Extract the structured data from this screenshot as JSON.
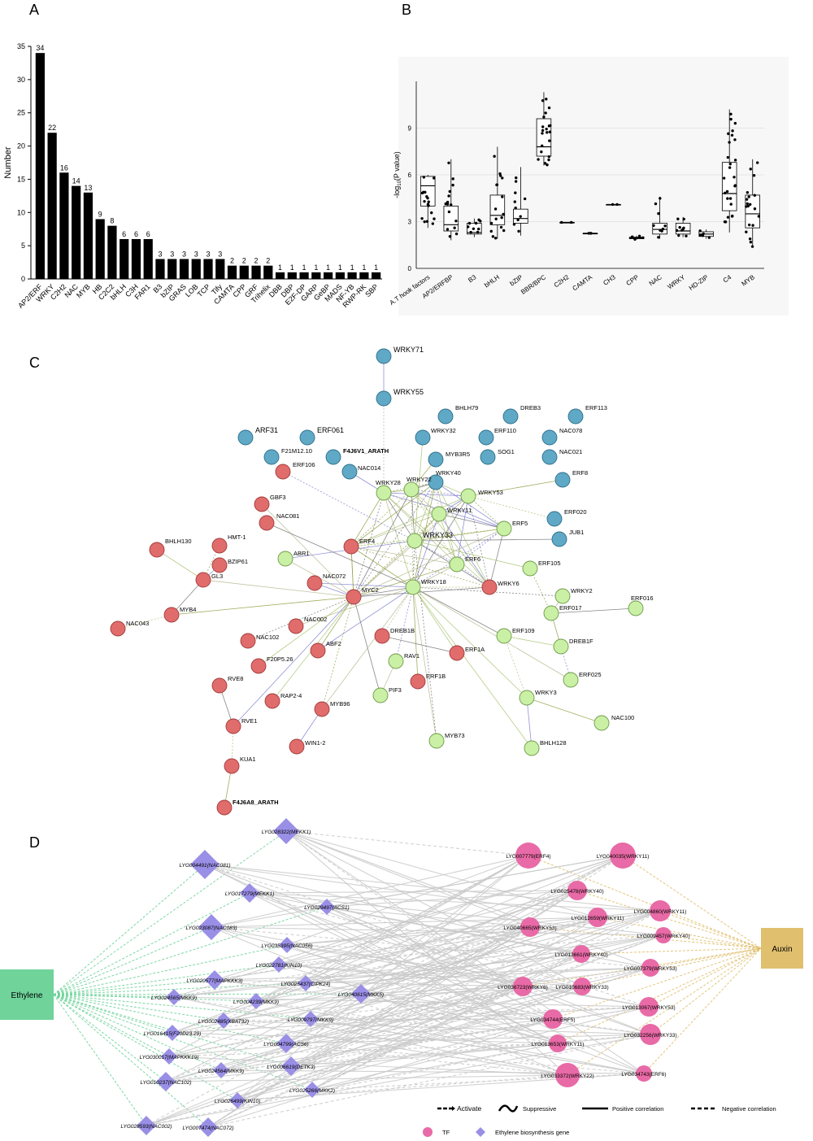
{
  "panel_labels": {
    "a": "A",
    "b": "B",
    "c": "C",
    "d": "D"
  },
  "chart_data": [
    {
      "type": "bar",
      "title": "",
      "ylabel": "Number",
      "xlabel": "",
      "ylim": [
        0,
        35
      ],
      "yticks": [
        0,
        5,
        10,
        15,
        20,
        25,
        30,
        35
      ],
      "categories": [
        "AP2/ERF",
        "WRKY",
        "C2H2",
        "NAC",
        "MYB",
        "HB",
        "C2C2",
        "bHLH",
        "C3H",
        "FAR1",
        "B3",
        "bZIP",
        "GRAS",
        "LOB",
        "TCP",
        "Tify",
        "CAMTA",
        "CPP",
        "GRF",
        "Trihelix",
        "DBB",
        "DBP",
        "E2F-DP",
        "GARP",
        "GeBP",
        "MADS",
        "NF-YB",
        "RWP-RK",
        "SBP"
      ],
      "values": [
        34,
        22,
        16,
        14,
        13,
        9,
        8,
        6,
        6,
        6,
        3,
        3,
        3,
        3,
        3,
        3,
        2,
        2,
        2,
        2,
        1,
        1,
        1,
        1,
        1,
        1,
        1,
        1,
        1
      ]
    },
    {
      "type": "box",
      "title": "",
      "ylabel": "-log10(P value)",
      "xlabel": "",
      "ylim": [
        0,
        12
      ],
      "yticks": [
        0,
        3,
        6,
        9
      ],
      "categories": [
        "A.T hook factors",
        "AP2/ERFBP",
        "B3",
        "bHLH",
        "bZIP",
        "BBR/BPC",
        "C2H2",
        "CAMTA",
        "CH3",
        "CPP",
        "NAC",
        "WRKY",
        "HD-ZIP",
        "C4",
        "MYB"
      ],
      "boxes": [
        {
          "q1": 4.0,
          "median": 5.3,
          "q3": 5.9,
          "lo": 2.6,
          "hi": 6.0
        },
        {
          "q1": 2.4,
          "median": 2.8,
          "q3": 4.0,
          "lo": 1.8,
          "hi": 7.0
        },
        {
          "q1": 2.2,
          "median": 2.3,
          "q3": 2.9,
          "lo": 2.0,
          "hi": 3.2
        },
        {
          "q1": 2.8,
          "median": 3.4,
          "q3": 4.7,
          "lo": 1.9,
          "hi": 7.8
        },
        {
          "q1": 2.9,
          "median": 3.2,
          "q3": 3.8,
          "lo": 2.1,
          "hi": 6.5
        },
        {
          "q1": 7.2,
          "median": 7.8,
          "q3": 9.6,
          "lo": 6.6,
          "hi": 11.3
        },
        {
          "q1": 2.95,
          "median": 2.95,
          "q3": 2.95,
          "lo": 2.95,
          "hi": 2.95
        },
        {
          "q1": 2.25,
          "median": 2.25,
          "q3": 2.25,
          "lo": 2.25,
          "hi": 2.25
        },
        {
          "q1": 4.1,
          "median": 4.1,
          "q3": 4.1,
          "lo": 4.1,
          "hi": 4.1
        },
        {
          "q1": 1.9,
          "median": 1.95,
          "q3": 2.0,
          "lo": 1.85,
          "hi": 2.1
        },
        {
          "q1": 2.2,
          "median": 2.5,
          "q3": 2.9,
          "lo": 1.9,
          "hi": 4.6
        },
        {
          "q1": 2.2,
          "median": 2.4,
          "q3": 2.9,
          "lo": 2.0,
          "hi": 3.3
        },
        {
          "q1": 2.05,
          "median": 2.2,
          "q3": 2.35,
          "lo": 1.9,
          "hi": 2.5
        },
        {
          "q1": 3.7,
          "median": 4.8,
          "q3": 6.8,
          "lo": 2.3,
          "hi": 10.2
        },
        {
          "q1": 2.6,
          "median": 3.5,
          "q3": 4.7,
          "lo": 1.4,
          "hi": 7.0
        }
      ]
    }
  ],
  "network_c": {
    "nodes": [
      {
        "id": "WRKY71",
        "c": "b"
      },
      {
        "id": "WRKY55",
        "c": "b"
      },
      {
        "id": "BHLH79",
        "c": "b"
      },
      {
        "id": "DREB3",
        "c": "b"
      },
      {
        "id": "ERF113",
        "c": "b"
      },
      {
        "id": "ARF31",
        "c": "b"
      },
      {
        "id": "ERF061",
        "c": "b"
      },
      {
        "id": "WRKY32",
        "c": "b"
      },
      {
        "id": "ERF110",
        "c": "b"
      },
      {
        "id": "NAC078",
        "c": "b"
      },
      {
        "id": "F21M12.10",
        "c": "b"
      },
      {
        "id": "F4J6V1_ARATH",
        "c": "b"
      },
      {
        "id": "MYB3R5",
        "c": "b"
      },
      {
        "id": "SOG1",
        "c": "b"
      },
      {
        "id": "NAC021",
        "c": "b"
      },
      {
        "id": "NAC014",
        "c": "b"
      },
      {
        "id": "ERF8",
        "c": "b"
      },
      {
        "id": "ERF020",
        "c": "b"
      },
      {
        "id": "JUB1",
        "c": "b"
      },
      {
        "id": "WRKY40",
        "c": "b"
      },
      {
        "id": "ERF106",
        "c": "r"
      },
      {
        "id": "GBF3",
        "c": "r"
      },
      {
        "id": "NAC081",
        "c": "r"
      },
      {
        "id": "BHLH130",
        "c": "r"
      },
      {
        "id": "HMT-1",
        "c": "r"
      },
      {
        "id": "BZIP61",
        "c": "r"
      },
      {
        "id": "GL3",
        "c": "r"
      },
      {
        "id": "MYB4",
        "c": "r"
      },
      {
        "id": "NAC043",
        "c": "r"
      },
      {
        "id": "ERF4",
        "c": "r"
      },
      {
        "id": "NAC072",
        "c": "r"
      },
      {
        "id": "MYC2",
        "c": "r"
      },
      {
        "id": "NAC002",
        "c": "r"
      },
      {
        "id": "NAC102",
        "c": "r"
      },
      {
        "id": "F20P5.26",
        "c": "r"
      },
      {
        "id": "ABF2",
        "c": "r"
      },
      {
        "id": "DREB1B",
        "c": "r"
      },
      {
        "id": "WRKY6",
        "c": "r"
      },
      {
        "id": "ERF1A",
        "c": "r"
      },
      {
        "id": "ERF1B",
        "c": "r"
      },
      {
        "id": "RVE8",
        "c": "r"
      },
      {
        "id": "RAP2-4",
        "c": "r"
      },
      {
        "id": "MYB96",
        "c": "r"
      },
      {
        "id": "RVE1",
        "c": "r"
      },
      {
        "id": "WIN1-2",
        "c": "r"
      },
      {
        "id": "KUA1",
        "c": "r"
      },
      {
        "id": "F4J6A8_ARATH",
        "c": "r"
      },
      {
        "id": "WRKY28",
        "c": "g"
      },
      {
        "id": "WRKY22",
        "c": "g"
      },
      {
        "id": "WRKY53",
        "c": "g"
      },
      {
        "id": "WRKY11",
        "c": "g"
      },
      {
        "id": "WRKY33",
        "c": "g"
      },
      {
        "id": "ERF5",
        "c": "g"
      },
      {
        "id": "ABR1",
        "c": "g"
      },
      {
        "id": "ERF6",
        "c": "g"
      },
      {
        "id": "ERF105",
        "c": "g"
      },
      {
        "id": "WRKY18",
        "c": "g"
      },
      {
        "id": "WRKY2",
        "c": "g"
      },
      {
        "id": "ERF016",
        "c": "g"
      },
      {
        "id": "ERF017",
        "c": "g"
      },
      {
        "id": "ERF109",
        "c": "g"
      },
      {
        "id": "DREB1F",
        "c": "g"
      },
      {
        "id": "RAV1",
        "c": "g"
      },
      {
        "id": "ERF025",
        "c": "g"
      },
      {
        "id": "PIF3",
        "c": "g"
      },
      {
        "id": "WRKY3",
        "c": "g"
      },
      {
        "id": "NAC100",
        "c": "g"
      },
      {
        "id": "MYB73",
        "c": "g"
      },
      {
        "id": "BHLH128",
        "c": "g"
      }
    ]
  },
  "network_d": {
    "ethylene_label": "Ethylene",
    "auxin_label": "Auxin",
    "genes": [
      "LYG028322(MEKK1)",
      "LYG004491(NAC081)",
      "LYG017279(MEKK1)",
      "LYG029497(ACS1)",
      "LYG023087(NAC083)",
      "LYG035395(NAC056)",
      "LYG022781(KIN10)",
      "LYG020577(MAPKKK3)",
      "LYG025437(CIPK24)",
      "LYG024565(MKK9)",
      "LYG004239(MKK9)",
      "LYG040615(MKK5)",
      "LYG002485(XBAT32)",
      "LYG009797(MKK9)",
      "LYG016415(F20D23.29)",
      "LYG004799(ACS6)",
      "LYG030017(MAPKKK19)",
      "LYG024564(MKK9)",
      "LYG006619(DETK3)",
      "LYG010237(NAC102)",
      "LYG026499(KIN10)",
      "LYG025266(MKK2)",
      "LYG028593(NAC002)",
      "LYG007474(NAC072)"
    ],
    "tfs": [
      "LYG007779(ERF4)",
      "LYG040035(WRKY11)",
      "LYG025478(WRKY40)",
      "LYG004860(WRKY11)",
      "LYG012659(WRKY11)",
      "LYG040665(WRKY53)",
      "LYG009457(WRKY40)",
      "LYG013661(WRKY40)",
      "LYG007379(WRKY53)",
      "LYG036723(WRKY6)",
      "LYG010683(WRKY33)",
      "LYG013067(WRKY53)",
      "LYG034744(ERF5)",
      "LYG032256(WRKY33)",
      "LYG013653(WRKY11)",
      "LYG034743(ERF6)",
      "LYG033372(WRKY22)"
    ],
    "legend": {
      "activate": "Activate",
      "suppressive": "Suppressive",
      "positive": "Positive correlation",
      "negative": "Negative correlation",
      "tf": "TF",
      "ethylene_gene": "Ethylene biosynthesis gene"
    },
    "colors": {
      "tf": "#e86aa6",
      "gene": "#9a8fe6",
      "ethylene": "#6fd39a",
      "auxin": "#e0bf6e",
      "edge": "#c9c9c9"
    }
  }
}
